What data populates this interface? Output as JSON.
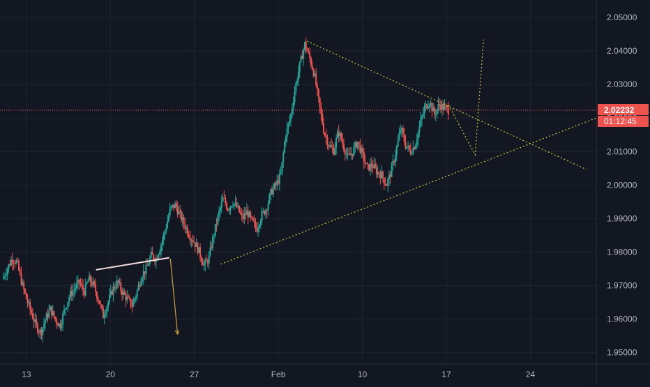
{
  "chart_data": {
    "type": "candlestick",
    "y_axis": {
      "ticks": [
        "2.05000",
        "2.04000",
        "2.03000",
        "2.02000",
        "2.01000",
        "2.00000",
        "1.99000",
        "1.98000",
        "1.97000",
        "1.96000",
        "1.95000"
      ],
      "tick_values": [
        2.05,
        2.04,
        2.03,
        2.02,
        2.01,
        2.0,
        1.99,
        1.98,
        1.97,
        1.96,
        1.95
      ],
      "range": [
        1.9466,
        2.0552
      ],
      "position": "right"
    },
    "x_axis": {
      "ticks": [
        "13",
        "20",
        "27",
        "Feb",
        "10",
        "17",
        "24"
      ],
      "tick_day_index": [
        0,
        7,
        14,
        21,
        28,
        35,
        42
      ],
      "range_days": [
        -2.2,
        47.5
      ]
    },
    "last_price": {
      "label": "2.02232",
      "value": 2.02232,
      "countdown": "01:12:45"
    },
    "close_path": [
      [
        -2.0,
        1.972
      ],
      [
        -1.6,
        1.975
      ],
      [
        -1.2,
        1.978
      ],
      [
        -0.8,
        1.977
      ],
      [
        -0.4,
        1.971
      ],
      [
        0.0,
        1.966
      ],
      [
        0.4,
        1.962
      ],
      [
        0.8,
        1.958
      ],
      [
        1.2,
        1.956
      ],
      [
        1.6,
        1.96
      ],
      [
        2.0,
        1.963
      ],
      [
        2.4,
        1.96
      ],
      [
        2.8,
        1.958
      ],
      [
        3.2,
        1.963
      ],
      [
        3.6,
        1.967
      ],
      [
        4.0,
        1.969
      ],
      [
        4.4,
        1.971
      ],
      [
        4.8,
        1.968
      ],
      [
        5.2,
        1.972
      ],
      [
        5.6,
        1.97
      ],
      [
        6.0,
        1.966
      ],
      [
        6.4,
        1.961
      ],
      [
        6.8,
        1.965
      ],
      [
        7.2,
        1.969
      ],
      [
        7.6,
        1.971
      ],
      [
        8.0,
        1.968
      ],
      [
        8.4,
        1.966
      ],
      [
        8.8,
        1.964
      ],
      [
        9.2,
        1.968
      ],
      [
        9.6,
        1.973
      ],
      [
        10.0,
        1.975
      ],
      [
        10.4,
        1.979
      ],
      [
        10.8,
        1.978
      ],
      [
        11.2,
        1.982
      ],
      [
        11.6,
        1.987
      ],
      [
        12.0,
        1.993
      ],
      [
        12.4,
        1.994
      ],
      [
        12.8,
        1.991
      ],
      [
        13.2,
        1.988
      ],
      [
        13.6,
        1.985
      ],
      [
        14.0,
        1.983
      ],
      [
        14.4,
        1.98
      ],
      [
        14.8,
        1.976
      ],
      [
        15.2,
        1.978
      ],
      [
        15.6,
        1.985
      ],
      [
        16.0,
        1.991
      ],
      [
        16.4,
        1.996
      ],
      [
        16.8,
        1.993
      ],
      [
        17.2,
        1.995
      ],
      [
        17.6,
        1.993
      ],
      [
        18.0,
        1.99
      ],
      [
        18.4,
        1.992
      ],
      [
        18.8,
        1.989
      ],
      [
        19.2,
        1.987
      ],
      [
        19.6,
        1.991
      ],
      [
        20.0,
        1.993
      ],
      [
        20.4,
        1.998
      ],
      [
        20.8,
        2.0
      ],
      [
        21.2,
        2.003
      ],
      [
        21.6,
        2.015
      ],
      [
        22.0,
        2.02
      ],
      [
        22.4,
        2.029
      ],
      [
        22.8,
        2.036
      ],
      [
        23.2,
        2.042
      ],
      [
        23.6,
        2.038
      ],
      [
        24.0,
        2.033
      ],
      [
        24.4,
        2.024
      ],
      [
        24.8,
        2.016
      ],
      [
        25.2,
        2.012
      ],
      [
        25.6,
        2.01
      ],
      [
        26.0,
        2.016
      ],
      [
        26.4,
        2.012
      ],
      [
        26.8,
        2.008
      ],
      [
        27.2,
        2.01
      ],
      [
        27.6,
        2.013
      ],
      [
        28.0,
        2.009
      ],
      [
        28.4,
        2.005
      ],
      [
        28.8,
        2.006
      ],
      [
        29.2,
        2.004
      ],
      [
        29.6,
        2.003
      ],
      [
        30.0,
        2.0
      ],
      [
        30.4,
        2.004
      ],
      [
        30.8,
        2.01
      ],
      [
        31.2,
        2.017
      ],
      [
        31.6,
        2.012
      ],
      [
        32.0,
        2.01
      ],
      [
        32.4,
        2.012
      ],
      [
        32.8,
        2.018
      ],
      [
        33.2,
        2.023
      ],
      [
        33.6,
        2.025
      ],
      [
        34.0,
        2.021
      ],
      [
        34.4,
        2.024
      ],
      [
        34.8,
        2.023
      ],
      [
        35.2,
        2.0223
      ]
    ],
    "trendlines": [
      {
        "kind": "solid",
        "color": "#f4dede",
        "points": [
          [
            5.8,
            1.9747
          ],
          [
            11.9,
            1.9783
          ]
        ]
      },
      {
        "kind": "arrow",
        "color": "#d0a23a",
        "points": [
          [
            12.0,
            1.978
          ],
          [
            12.6,
            1.9555
          ]
        ]
      },
      {
        "kind": "dotted",
        "color": "#c6cc3a",
        "points": [
          [
            16.2,
            1.9764
          ],
          [
            48.5,
            2.0214
          ]
        ]
      },
      {
        "kind": "dotted",
        "color": "#c6cc3a",
        "points": [
          [
            23.4,
            2.0429
          ],
          [
            46.7,
            2.0046
          ]
        ]
      },
      {
        "kind": "dotted",
        "color": "#c6cc3a",
        "points": [
          [
            35.2,
            2.0238
          ],
          [
            37.4,
            2.009
          ],
          [
            38.1,
            2.0434
          ]
        ]
      }
    ],
    "colors": {
      "up": "#26a69a",
      "down": "#ef5350",
      "grid": "#1f2430",
      "background": "#131722",
      "price_line": "#ef5350"
    }
  }
}
